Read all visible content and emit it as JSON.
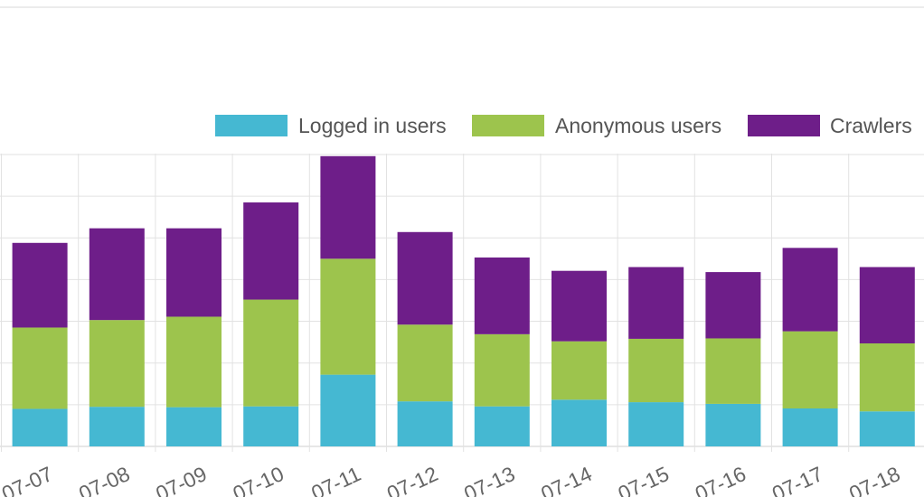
{
  "chart_data": {
    "type": "bar",
    "stacked": true,
    "categories": [
      "2017-07-07",
      "2017-07-08",
      "2017-07-09",
      "2017-07-10",
      "2017-07-11",
      "2017-07-12",
      "2017-07-13",
      "2017-07-14",
      "2017-07-15",
      "2017-07-16",
      "2017-07-17",
      "2017-07-18"
    ],
    "tick_labels": [
      "07-07",
      "07-08",
      "07-09",
      "07-10",
      "07-11",
      "07-12",
      "07-13",
      "07-14",
      "07-15",
      "07-16",
      "07-17",
      "07-18"
    ],
    "series": [
      {
        "name": "Logged in users",
        "color": "#45b8d2",
        "values": [
          90,
          95,
          94,
          96,
          172,
          108,
          96,
          112,
          106,
          102,
          91,
          84
        ]
      },
      {
        "name": "Anonymous users",
        "color": "#9dc44d",
        "values": [
          195,
          208,
          217,
          256,
          278,
          184,
          173,
          140,
          152,
          157,
          185,
          163
        ]
      },
      {
        "name": "Crawlers",
        "color": "#6e1e89",
        "values": [
          203,
          220,
          212,
          233,
          246,
          222,
          184,
          169,
          172,
          159,
          200,
          183
        ]
      }
    ],
    "legend_position": "top-right",
    "ylim": [
      0,
      700
    ],
    "grid": true
  }
}
